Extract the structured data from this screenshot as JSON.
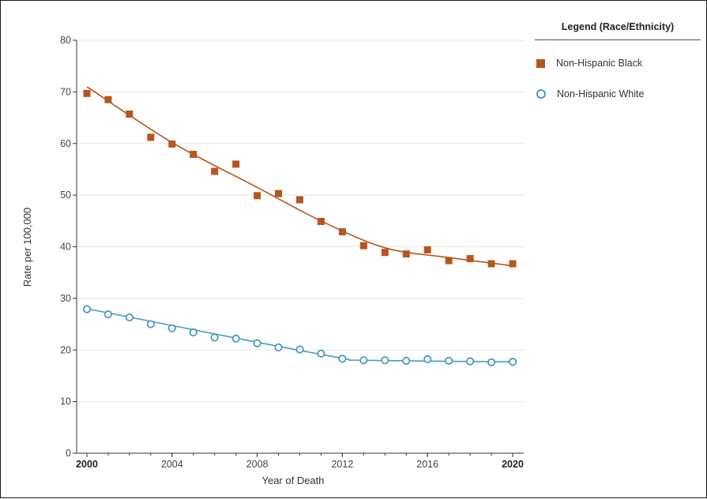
{
  "colors": {
    "black_series": "#B5561F",
    "white_series": "#4A9BBE",
    "grid": "#e6e6e6",
    "axis": "#333333"
  },
  "legend": {
    "title": "Legend (Race/Ethnicity)",
    "items": [
      {
        "label": "Non-Hispanic Black",
        "marker": "square",
        "color": "#B5561F"
      },
      {
        "label": "Non-Hispanic White",
        "marker": "circle",
        "color": "#4A9BBE"
      }
    ]
  },
  "chart_data": {
    "type": "scatter",
    "title": "",
    "xlabel": "Year of Death",
    "ylabel": "Rate per 100,000",
    "xlim": [
      2000,
      2020
    ],
    "ylim": [
      0,
      80
    ],
    "x_ticks": [
      {
        "value": 2000,
        "label": "2000",
        "bold": true
      },
      {
        "value": 2004,
        "label": "2004",
        "bold": false
      },
      {
        "value": 2008,
        "label": "2008",
        "bold": false
      },
      {
        "value": 2012,
        "label": "2012",
        "bold": false
      },
      {
        "value": 2016,
        "label": "2016",
        "bold": false
      },
      {
        "value": 2020,
        "label": "2020",
        "bold": true
      }
    ],
    "y_ticks": [
      0,
      10,
      20,
      30,
      40,
      50,
      60,
      70,
      80
    ],
    "grid": true,
    "legend_position": "top-right",
    "x": [
      2000,
      2001,
      2002,
      2003,
      2004,
      2005,
      2006,
      2007,
      2008,
      2009,
      2010,
      2011,
      2012,
      2013,
      2014,
      2015,
      2016,
      2017,
      2018,
      2019,
      2020
    ],
    "series": [
      {
        "name": "Non-Hispanic Black",
        "marker": "square",
        "color": "#B5561F",
        "values": [
          69.7,
          68.5,
          65.7,
          61.2,
          59.9,
          57.9,
          54.6,
          56.0,
          49.9,
          50.3,
          49.1,
          44.9,
          42.9,
          40.2,
          38.9,
          38.6,
          39.4,
          37.3,
          37.7,
          36.7,
          36.7
        ],
        "trend": [
          [
            2000,
            71.0
          ],
          [
            2004,
            60.2
          ],
          [
            2008,
            51.5
          ],
          [
            2011,
            45.0
          ],
          [
            2014,
            39.8
          ],
          [
            2017,
            37.9
          ],
          [
            2020,
            36.3
          ]
        ]
      },
      {
        "name": "Non-Hispanic White",
        "marker": "circle",
        "color": "#4A9BBE",
        "values": [
          27.9,
          26.9,
          26.3,
          25.0,
          24.2,
          23.4,
          22.4,
          22.2,
          21.3,
          20.5,
          20.1,
          19.3,
          18.3,
          18.0,
          18.0,
          17.9,
          18.2,
          17.9,
          17.8,
          17.6,
          17.7
        ],
        "trend": [
          [
            2000,
            28.0
          ],
          [
            2008,
            21.5
          ],
          [
            2012,
            18.4
          ],
          [
            2013,
            18.0
          ],
          [
            2020,
            17.7
          ]
        ]
      }
    ]
  }
}
